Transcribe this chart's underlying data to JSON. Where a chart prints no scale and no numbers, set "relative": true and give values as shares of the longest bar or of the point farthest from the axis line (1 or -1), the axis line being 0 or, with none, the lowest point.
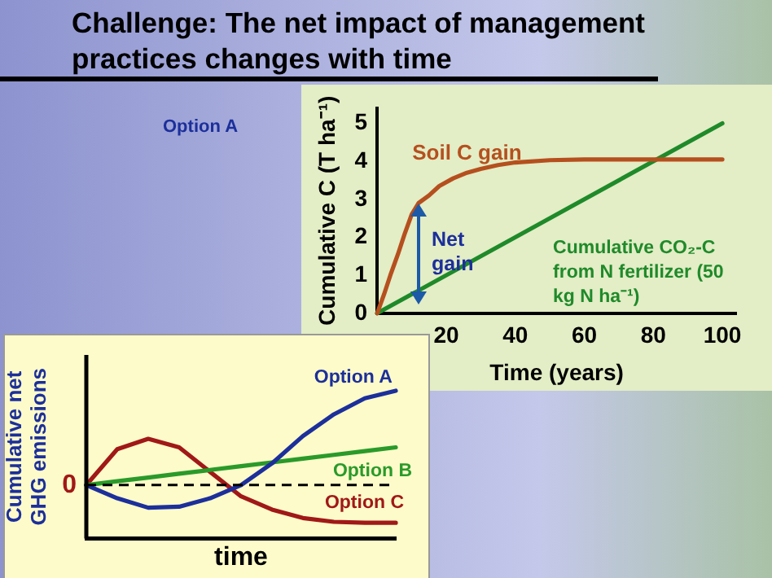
{
  "chart_data": [
    {
      "type": "line",
      "title": "Challenge: The net impact of management practices changes with time",
      "xlabel": "Time (years)",
      "ylabel": "Cumulative C (T ha⁻¹)",
      "xlim": [
        0,
        104
      ],
      "ylim": [
        0,
        5.4
      ],
      "xticks": [
        20,
        40,
        60,
        80,
        100
      ],
      "yticks": [
        0,
        1,
        2,
        3,
        4,
        5
      ],
      "grid": false,
      "legend": false,
      "marker": "none",
      "series": [
        {
          "name": "Soil C gain",
          "color": "#b5501e",
          "x": [
            0,
            2,
            4,
            6,
            8,
            10,
            12,
            15,
            18,
            22,
            26,
            30,
            35,
            40,
            50,
            60,
            80,
            100
          ],
          "values": [
            0,
            0.5,
            1.05,
            1.55,
            2.1,
            2.6,
            2.9,
            3.1,
            3.35,
            3.55,
            3.7,
            3.8,
            3.9,
            3.97,
            4.03,
            4.05,
            4.05,
            4.05
          ]
        },
        {
          "name": "Cumulative CO₂-C from N fertilizer (50 kg N ha⁻¹)",
          "color": "#1f8a2a",
          "x": [
            0,
            100
          ],
          "values": [
            0,
            5
          ]
        }
      ],
      "annotations": [
        {
          "text": "Net gain",
          "x": 12,
          "y": 2.9
        },
        "Option A"
      ]
    },
    {
      "type": "line",
      "xlabel": "time",
      "ylabel": "Cumulative net GHG emissions",
      "relative": true,
      "grid": false,
      "legend": false,
      "marker": "none",
      "categories": [
        null,
        null,
        null,
        null,
        null,
        null,
        null,
        null,
        null,
        null,
        null
      ],
      "series": [
        {
          "name": "Option A",
          "color": "#1c2f9b",
          "values": [
            0,
            -0.14,
            -0.24,
            -0.23,
            -0.14,
            0,
            0.23,
            0.52,
            0.75,
            0.92,
            1
          ]
        },
        {
          "name": "Option B",
          "color": "#2a9a2a",
          "values": [
            0,
            0.04,
            0.08,
            0.12,
            0.16,
            0.2,
            0.24,
            0.28,
            0.32,
            0.36,
            0.4
          ]
        },
        {
          "name": "Option C",
          "color": "#a01818",
          "values": [
            0,
            0.38,
            0.49,
            0.4,
            0.14,
            -0.12,
            -0.26,
            -0.35,
            -0.39,
            -0.4,
            -0.4
          ]
        }
      ],
      "ref_lines": [
        {
          "axis": "y",
          "value": 0,
          "label": "0",
          "color": "#000000",
          "line_style": "dashed"
        }
      ]
    }
  ]
}
